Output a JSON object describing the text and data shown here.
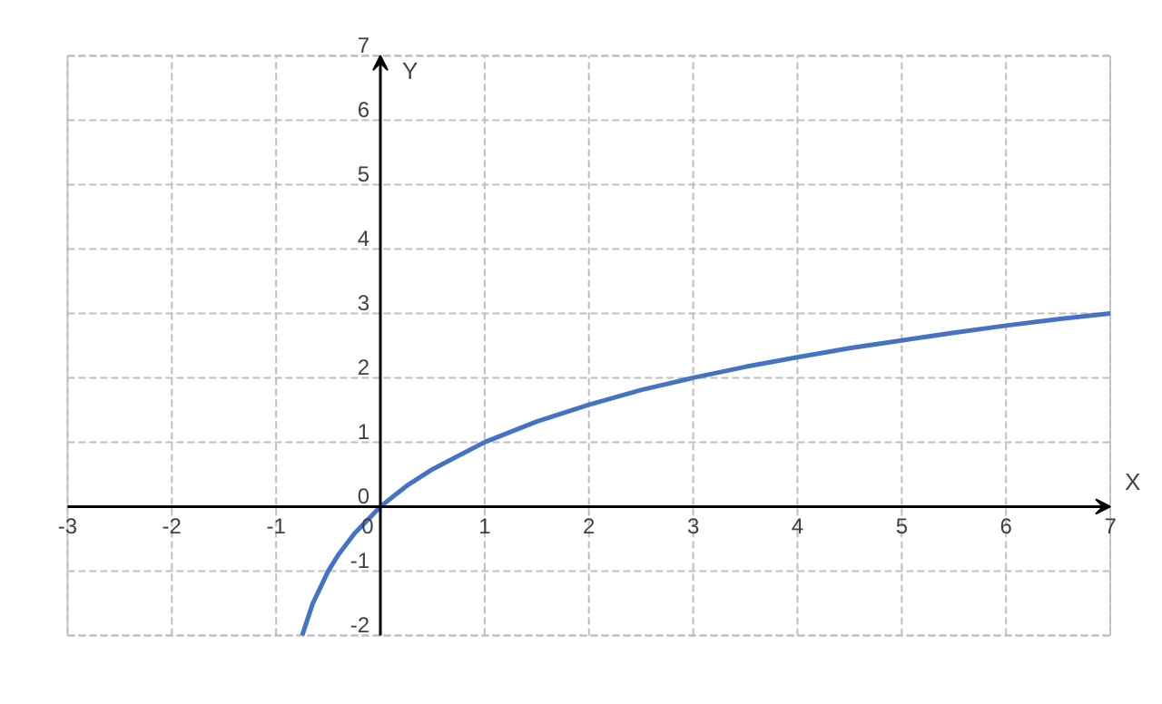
{
  "chart_data": {
    "type": "line",
    "xlabel": "X",
    "ylabel": "Y",
    "x": [
      -0.75,
      -0.65,
      -0.5,
      -0.4,
      -0.25,
      0,
      0.25,
      0.5,
      1,
      1.5,
      2,
      2.5,
      3,
      3.5,
      4,
      4.5,
      5,
      5.5,
      6,
      6.5,
      7
    ],
    "series": [
      {
        "color": "#4472c4",
        "values": [
          -2,
          -1.51,
          -1,
          -0.74,
          -0.42,
          0,
          0.32,
          0.58,
          1,
          1.32,
          1.58,
          1.81,
          2,
          2.17,
          2.32,
          2.46,
          2.58,
          2.7,
          2.81,
          2.91,
          3
        ]
      }
    ],
    "xlim": [
      -3,
      7
    ],
    "ylim": [
      -2,
      7
    ],
    "xticks": [
      -3,
      -2,
      -1,
      0,
      1,
      2,
      3,
      4,
      5,
      6,
      7
    ],
    "yticks": [
      -2,
      -1,
      0,
      1,
      2,
      3,
      4,
      5,
      6,
      7
    ],
    "grid": true,
    "line_style": "solid",
    "marker": "none"
  }
}
